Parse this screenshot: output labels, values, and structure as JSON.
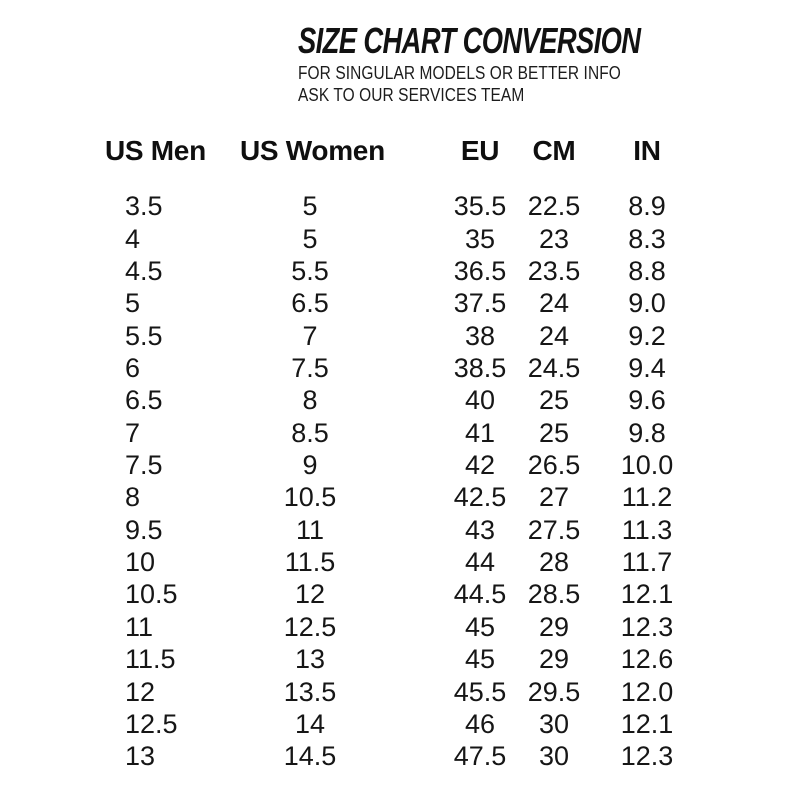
{
  "header": {
    "title": "SIZE CHART CONVERSION",
    "subtitle_line1": "FOR SINGULAR MODELS OR BETTER INFO",
    "subtitle_line2": "ASK TO OUR SERVICES TEAM"
  },
  "table": {
    "columns": [
      "US Men",
      "US Women",
      "EU",
      "CM",
      "IN"
    ],
    "rows": [
      [
        "3.5",
        "5",
        "35.5",
        "22.5",
        "8.9"
      ],
      [
        "4",
        "5",
        "35",
        "23",
        "8.3"
      ],
      [
        "4.5",
        "5.5",
        "36.5",
        "23.5",
        "8.8"
      ],
      [
        "5",
        "6.5",
        "37.5",
        "24",
        "9.0"
      ],
      [
        "5.5",
        "7",
        "38",
        "24",
        "9.2"
      ],
      [
        "6",
        "7.5",
        "38.5",
        "24.5",
        "9.4"
      ],
      [
        "6.5",
        "8",
        "40",
        "25",
        "9.6"
      ],
      [
        "7",
        "8.5",
        "41",
        "25",
        "9.8"
      ],
      [
        "7.5",
        "9",
        "42",
        "26.5",
        "10.0"
      ],
      [
        "8",
        "10.5",
        "42.5",
        "27",
        "11.2"
      ],
      [
        "9.5",
        "11",
        "43",
        "27.5",
        "11.3"
      ],
      [
        "10",
        "11.5",
        "44",
        "28",
        "11.7"
      ],
      [
        "10.5",
        "12",
        "44.5",
        "28.5",
        "12.1"
      ],
      [
        "11",
        "12.5",
        "45",
        "29",
        "12.3"
      ],
      [
        "11.5",
        "13",
        "45",
        "29",
        "12.6"
      ],
      [
        "12",
        "13.5",
        "45.5",
        "29.5",
        "12.0"
      ],
      [
        "12.5",
        "14",
        "46",
        "30",
        "12.1"
      ],
      [
        "13",
        "14.5",
        "47.5",
        "30",
        "12.3"
      ]
    ]
  },
  "colors": {
    "text": "#161616",
    "background": "#ffffff"
  }
}
